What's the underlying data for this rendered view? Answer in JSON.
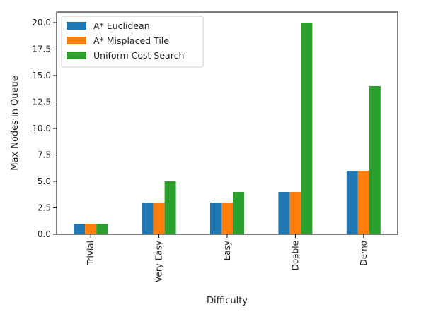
{
  "chart_data": {
    "type": "bar",
    "title": "",
    "xlabel": "Difficulty",
    "ylabel": "Max Nodes in Queue",
    "categories": [
      "Trivial",
      "Very Easy",
      "Easy",
      "Doable",
      "Demo"
    ],
    "series": [
      {
        "name": "A* Euclidean",
        "color": "#1f77b4",
        "values": [
          1,
          3,
          3,
          4,
          6
        ]
      },
      {
        "name": "A* Misplaced Tile",
        "color": "#ff7f0e",
        "values": [
          1,
          3,
          3,
          4,
          6
        ]
      },
      {
        "name": "Uniform Cost Search",
        "color": "#2ca02c",
        "values": [
          1,
          5,
          4,
          20,
          14
        ]
      }
    ],
    "ylim": [
      0,
      21
    ],
    "yticks": [
      "0.0",
      "2.5",
      "5.0",
      "7.5",
      "10.0",
      "12.5",
      "15.0",
      "17.5",
      "20.0"
    ],
    "grid": false,
    "legend_position": "top-left",
    "xtick_rotation": "vertical"
  }
}
